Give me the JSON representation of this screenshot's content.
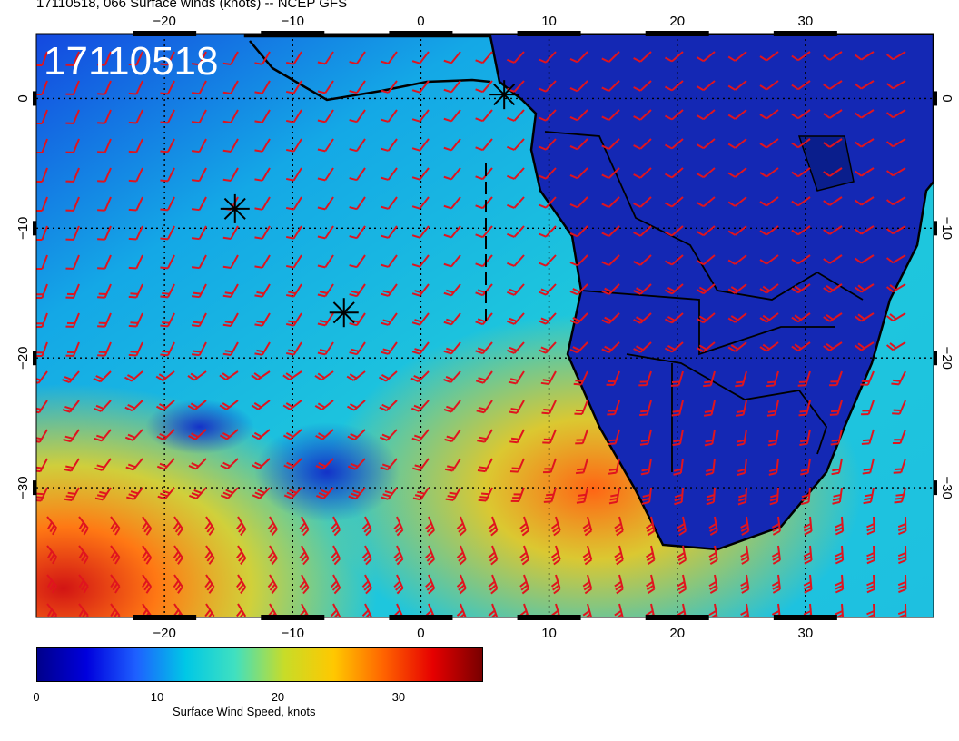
{
  "header": {
    "title": "17110518, 066 Surface winds (knots) -- NCEP GFS"
  },
  "stamp": {
    "text": "17110518"
  },
  "map": {
    "lon_range": [
      -30,
      40
    ],
    "lat_range": [
      -40,
      5
    ],
    "lon_ticks": [
      "−20",
      "−10",
      "0",
      "10",
      "20",
      "30"
    ],
    "lat_ticks": [
      "0",
      "−10",
      "−20",
      "−30"
    ],
    "barb_color": "#e0141e",
    "markers": [
      {
        "name": "storm-marker",
        "lon": 6.5,
        "lat": 0.3
      },
      {
        "name": "storm-marker",
        "lon": -14.5,
        "lat": -8.5
      },
      {
        "name": "storm-marker",
        "lon": -6,
        "lat": -16.5
      }
    ]
  },
  "colorbar": {
    "ticks": [
      "0",
      "10",
      "20",
      "30"
    ],
    "label": "Surface Wind Speed, knots",
    "range": [
      0,
      37
    ],
    "colors": [
      "#00008b",
      "#0000dd",
      "#1e60ff",
      "#00c8e6",
      "#40e0c0",
      "#c8dc28",
      "#ffc800",
      "#ff6400",
      "#e60000",
      "#780000"
    ]
  }
}
